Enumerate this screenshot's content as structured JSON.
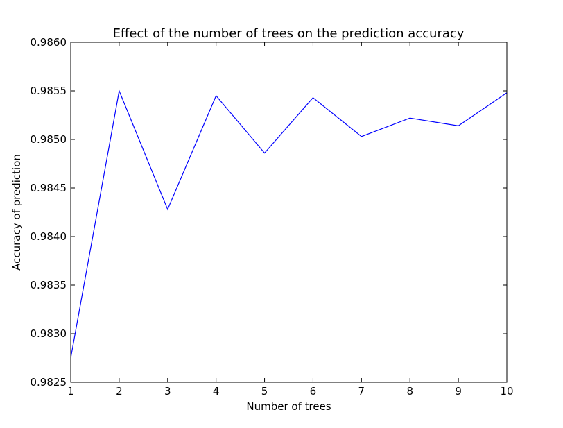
{
  "chart_data": {
    "type": "line",
    "title": "Effect of the number of trees on the prediction accuracy",
    "xlabel": "Number of trees",
    "ylabel": "Accuracy of prediction",
    "xlim": [
      1,
      10
    ],
    "ylim": [
      0.9825,
      0.986
    ],
    "x_ticks": [
      "1",
      "2",
      "3",
      "4",
      "5",
      "6",
      "7",
      "8",
      "9",
      "10"
    ],
    "y_ticks": [
      "0.9825",
      "0.9830",
      "0.9835",
      "0.9840",
      "0.9845",
      "0.9850",
      "0.9855",
      "0.9860"
    ],
    "grid": false,
    "legend": "none",
    "line_color": "#0000ff",
    "series": [
      {
        "x": [
          1,
          2,
          3,
          4,
          5,
          6,
          7,
          8,
          9,
          10
        ],
        "values": [
          0.98275,
          0.9855,
          0.98428,
          0.98545,
          0.98486,
          0.98543,
          0.98503,
          0.98522,
          0.98514,
          0.98548
        ]
      }
    ]
  }
}
